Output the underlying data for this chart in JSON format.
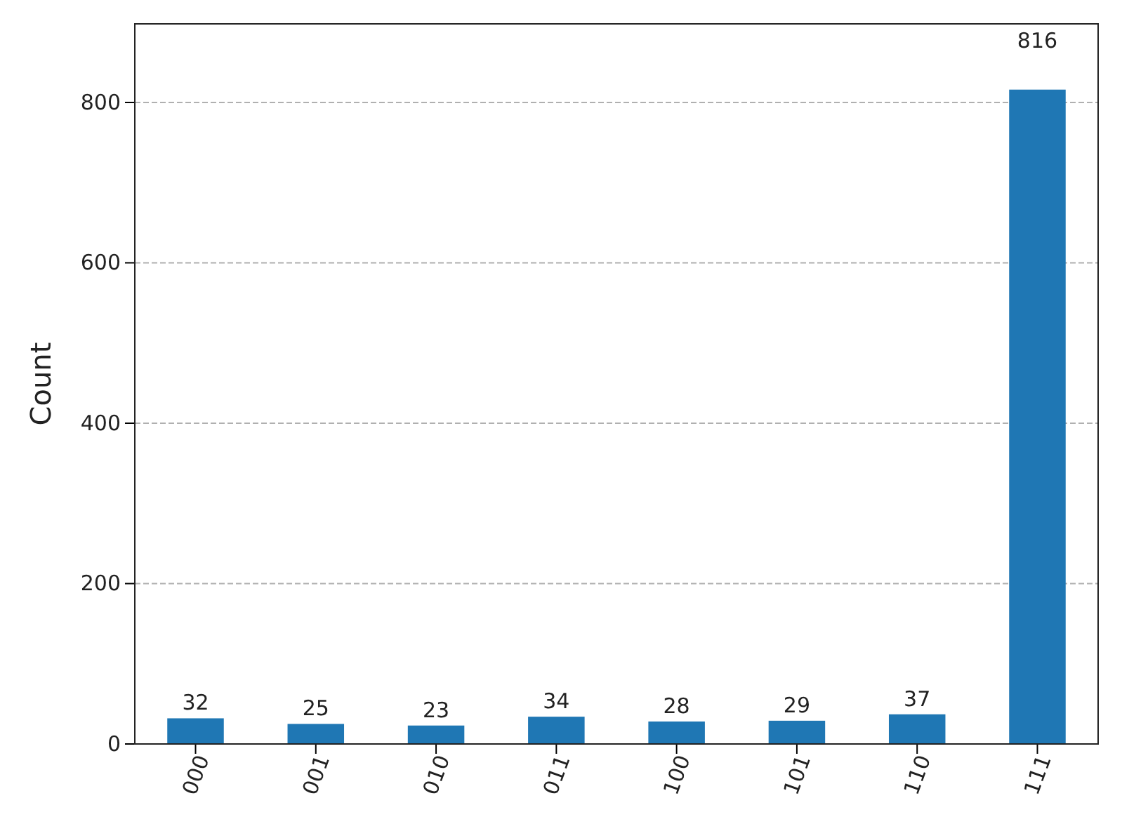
{
  "chart_data": {
    "type": "bar",
    "ylabel": "Count",
    "categories": [
      "000",
      "001",
      "010",
      "011",
      "100",
      "101",
      "110",
      "111"
    ],
    "values": [
      32,
      25,
      23,
      34,
      28,
      29,
      37,
      816
    ],
    "color": "#1f77b4",
    "ylim": [
      0,
      898
    ],
    "yticks": [
      0,
      200,
      400,
      600,
      800
    ],
    "grid": "y",
    "data_labels": true
  }
}
